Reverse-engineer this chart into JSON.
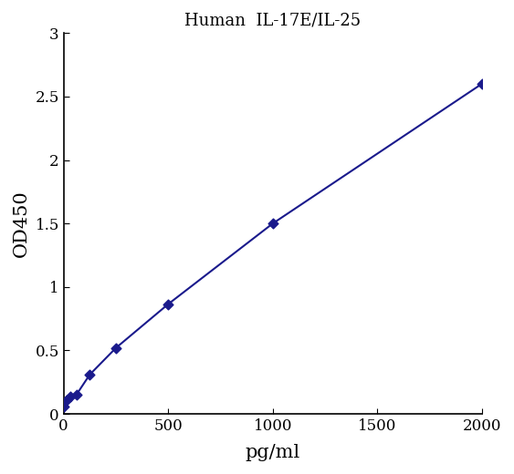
{
  "x": [
    0,
    15.625,
    31.25,
    62.5,
    125,
    250,
    500,
    1000,
    2000
  ],
  "y": [
    0.057,
    0.107,
    0.138,
    0.155,
    0.31,
    0.52,
    0.865,
    1.5,
    2.6
  ],
  "title": "Human  IL-17E/IL-25",
  "xlabel": "pg/ml",
  "ylabel": "OD450",
  "xlim": [
    0,
    2000
  ],
  "ylim": [
    0,
    3
  ],
  "xticks": [
    0,
    500,
    1000,
    1500,
    2000
  ],
  "yticks": [
    0,
    0.5,
    1,
    1.5,
    2,
    2.5,
    3
  ],
  "line_color": "#1a1a8c",
  "marker_color": "#1a1a8c",
  "title_color": "#000000",
  "title_fontsize": 13,
  "label_fontsize": 15,
  "tick_fontsize": 12,
  "background_color": "#ffffff"
}
